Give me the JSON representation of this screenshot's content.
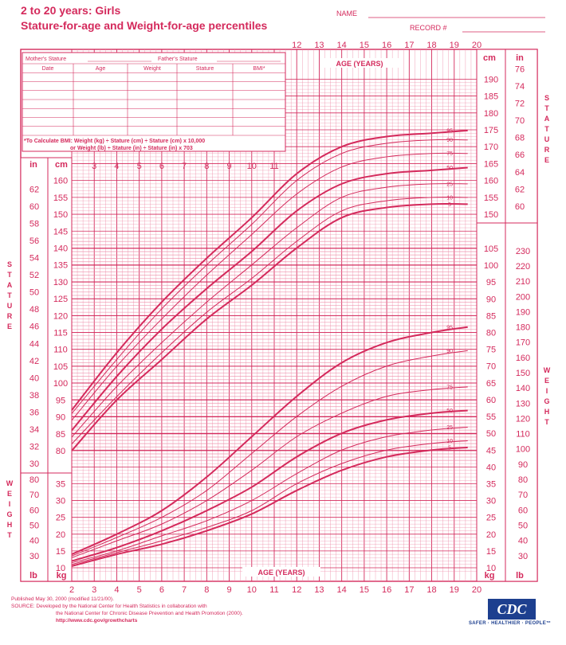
{
  "header": {
    "title_line1": "2 to 20 years: Girls",
    "title_line2": "Stature-for-age and Weight-for-age percentiles",
    "name_label": "NAME",
    "record_label": "RECORD #"
  },
  "record_table": {
    "mothers_stature": "Mother's Stature",
    "fathers_stature": "Father's Stature",
    "columns": [
      "Date",
      "Age",
      "Weight",
      "Stature",
      "BMI*"
    ],
    "bmi_note_1": "*To Calculate BMI: Weight (kg) ÷ Stature (cm) ÷ Stature (cm) x 10,000",
    "bmi_note_2": "or Weight (lb) ÷ Stature (in) ÷ Stature (in) x 703"
  },
  "footer": {
    "line1": "Published May 30, 2000 (modified 11/21/00).",
    "line2": "SOURCE: Developed by the National Center for Health Statistics in collaboration with",
    "line3": "the National Center for Chronic Disease Prevention and Health Promotion (2000).",
    "line4": "http://www.cdc.gov/growthcharts",
    "logo_text": "CDC",
    "tagline": "SAFER · HEALTHIER · PEOPLE™"
  },
  "colors": {
    "accent": "#d42a5c",
    "grid": "#ee8aa6",
    "logo": "#1d3f8f"
  },
  "chart_data": [
    {
      "type": "line",
      "name_hint": "stature-for-age",
      "xlabel": "AGE (YEARS)",
      "ylabel": "STATURE",
      "x": [
        2,
        4,
        6,
        8,
        10,
        12,
        14,
        16,
        18,
        20
      ],
      "xlim": [
        2,
        20
      ],
      "ylim_cm": [
        77,
        176
      ],
      "x_ticks_top": [
        "12",
        "13",
        "14",
        "15",
        "16",
        "17",
        "18",
        "19",
        "20"
      ],
      "x_ticks_mid": [
        "3",
        "4",
        "5",
        "6",
        "7",
        "8",
        "9",
        "10",
        "11"
      ],
      "x_ticks_bottom": [
        "2",
        "3",
        "4",
        "5",
        "6",
        "7",
        "8",
        "9",
        "10",
        "11",
        "12",
        "13",
        "14",
        "15",
        "16",
        "17",
        "18",
        "19",
        "20"
      ],
      "y_ticks_cm_left": [
        "80",
        "85",
        "90",
        "95",
        "100",
        "105",
        "110",
        "115",
        "120",
        "125",
        "130",
        "135",
        "140",
        "145",
        "150",
        "155",
        "160"
      ],
      "y_ticks_in_left": [
        "30",
        "32",
        "34",
        "36",
        "38",
        "40",
        "42",
        "44",
        "46",
        "48",
        "50",
        "52",
        "54",
        "56",
        "58",
        "60",
        "62"
      ],
      "y_ticks_cm_right": [
        "150",
        "155",
        "160",
        "165",
        "170",
        "175",
        "180",
        "185",
        "190"
      ],
      "y_ticks_in_right": [
        "60",
        "62",
        "64",
        "66",
        "68",
        "70",
        "72",
        "74",
        "76"
      ],
      "unit_cm": "cm",
      "unit_in": "in",
      "series": [
        {
          "name": "95",
          "values": [
            92,
            109,
            124,
            137,
            149,
            162,
            170,
            173,
            174,
            175
          ]
        },
        {
          "name": "90",
          "values": [
            91,
            107,
            122,
            135,
            147,
            160,
            168,
            171,
            172,
            172
          ]
        },
        {
          "name": "75",
          "values": [
            89,
            105,
            119,
            132,
            144,
            156,
            164,
            167,
            168,
            168
          ]
        },
        {
          "name": "50",
          "values": [
            86,
            102,
            116,
            128,
            139,
            151,
            159,
            162,
            163,
            164
          ]
        },
        {
          "name": "25",
          "values": [
            84,
            99,
            112,
            124,
            135,
            146,
            155,
            158,
            159,
            159
          ]
        },
        {
          "name": "10",
          "values": [
            82,
            96,
            109,
            121,
            131,
            142,
            151,
            154,
            155,
            155
          ]
        },
        {
          "name": "5",
          "values": [
            80,
            95,
            107,
            119,
            129,
            140,
            149,
            152,
            153,
            153
          ]
        }
      ]
    },
    {
      "type": "line",
      "name_hint": "weight-for-age",
      "xlabel": "AGE (YEARS)",
      "ylabel": "WEIGHT",
      "x": [
        2,
        4,
        6,
        8,
        10,
        12,
        14,
        16,
        18,
        20
      ],
      "xlim": [
        2,
        20
      ],
      "ylim_kg": [
        9,
        105
      ],
      "y_ticks_kg_left": [
        "10",
        "15",
        "20",
        "25",
        "30",
        "35"
      ],
      "y_ticks_lb_left": [
        "30",
        "40",
        "50",
        "60",
        "70",
        "80"
      ],
      "y_ticks_kg_right": [
        "10",
        "15",
        "20",
        "25",
        "30",
        "35",
        "40",
        "45",
        "50",
        "55",
        "60",
        "65",
        "70",
        "75",
        "80",
        "85",
        "90",
        "95",
        "100",
        "105"
      ],
      "y_ticks_lb_right": [
        "30",
        "40",
        "50",
        "60",
        "70",
        "80",
        "90",
        "100",
        "110",
        "120",
        "130",
        "140",
        "150",
        "160",
        "170",
        "180",
        "190",
        "200",
        "210",
        "220",
        "230"
      ],
      "unit_kg": "kg",
      "unit_lb": "lb",
      "series": [
        {
          "name": "95",
          "values": [
            14,
            20,
            27,
            37,
            49,
            61,
            71,
            77,
            80,
            82
          ]
        },
        {
          "name": "90",
          "values": [
            13.5,
            19,
            25,
            33,
            44,
            55,
            64,
            70,
            73,
            75
          ]
        },
        {
          "name": "75",
          "values": [
            13,
            18,
            23,
            30,
            39,
            49,
            56,
            61,
            63,
            64
          ]
        },
        {
          "name": "50",
          "values": [
            12,
            16,
            21,
            27,
            34,
            43,
            50,
            54,
            56,
            57
          ]
        },
        {
          "name": "25",
          "values": [
            11.5,
            15,
            19.5,
            24,
            30,
            38,
            45,
            49,
            51,
            52
          ]
        },
        {
          "name": "10",
          "values": [
            11,
            14.5,
            18,
            22,
            27,
            35,
            41,
            45,
            47,
            48
          ]
        },
        {
          "name": "5",
          "values": [
            10.5,
            14,
            17,
            21,
            26,
            33,
            39,
            43,
            45,
            46
          ]
        }
      ]
    }
  ]
}
